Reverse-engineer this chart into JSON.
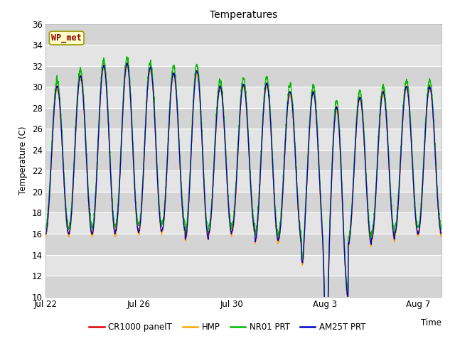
{
  "title": "Temperatures",
  "xlabel": "Time",
  "ylabel": "Temperature (C)",
  "ylim": [
    10,
    36
  ],
  "yticks": [
    10,
    12,
    14,
    16,
    18,
    20,
    22,
    24,
    26,
    28,
    30,
    32,
    34,
    36
  ],
  "xtick_positions": [
    0,
    4,
    8,
    12,
    16
  ],
  "xtick_labels": [
    "Jul 22",
    "Jul 26",
    "Jul 30",
    "Aug 3",
    "Aug 7"
  ],
  "station_label": "WP_met",
  "legend_entries": [
    "CR1000 panelT",
    "HMP",
    "NR01 PRT",
    "AM25T PRT"
  ],
  "line_colors": [
    "#dd0000",
    "#ffa500",
    "#00bb00",
    "#0000cc"
  ],
  "n_days": 17,
  "points_per_day": 144,
  "seed": 42,
  "band_colors": [
    "#d0d0d0",
    "#e0e0e0"
  ],
  "band_dark": "#c8c8c8",
  "band_light": "#dcdcdc"
}
